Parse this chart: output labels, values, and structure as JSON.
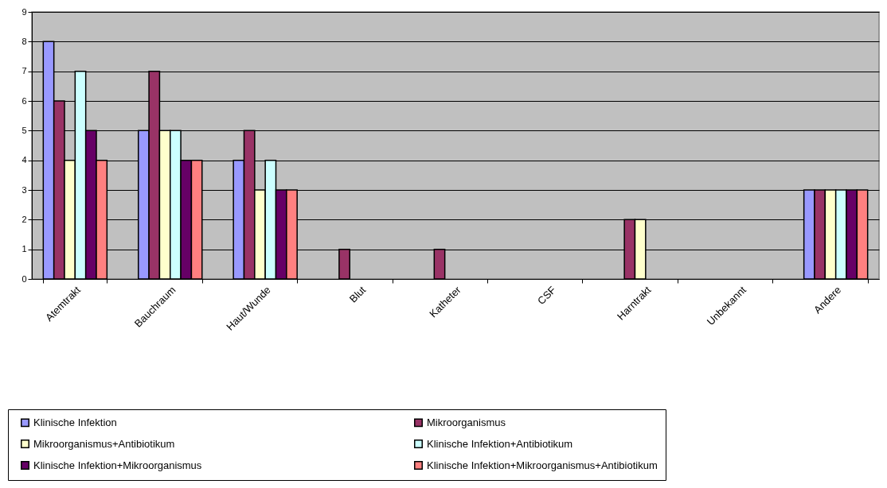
{
  "chart_data": {
    "type": "bar",
    "categories": [
      "Atemtrakt",
      "Bauchraum",
      "Haut/Wunde",
      "Blut",
      "Katheter",
      "CSF",
      "Harntrakt",
      "Unbekannt",
      "Andere"
    ],
    "series": [
      {
        "name": "Klinische Infektion",
        "color": "#9999ff",
        "values": [
          8,
          5,
          4,
          0,
          0,
          0,
          0,
          0,
          3
        ]
      },
      {
        "name": "Mikroorganismus",
        "color": "#993366",
        "values": [
          6,
          7,
          5,
          1,
          1,
          0,
          2,
          0,
          3
        ]
      },
      {
        "name": "Mikroorganismus+Antibiotikum",
        "color": "#ffffcc",
        "values": [
          4,
          5,
          3,
          0,
          0,
          0,
          2,
          0,
          3
        ]
      },
      {
        "name": "Klinische Infektion+Antibiotikum",
        "color": "#ccffff",
        "values": [
          7,
          5,
          4,
          0,
          0,
          0,
          0,
          0,
          3
        ]
      },
      {
        "name": "Klinische Infektion+Mikroorganismus",
        "color": "#660066",
        "values": [
          5,
          4,
          3,
          0,
          0,
          0,
          0,
          0,
          3
        ]
      },
      {
        "name": "Klinische Infektion+Mikroorganismus+Antibiotikum",
        "color": "#ff8080",
        "values": [
          4,
          4,
          3,
          0,
          0,
          0,
          0,
          0,
          3
        ]
      }
    ],
    "ylim": [
      0,
      9
    ],
    "yticks": [
      0,
      1,
      2,
      3,
      4,
      5,
      6,
      7,
      8,
      9
    ],
    "grid": "y",
    "legend": "bottom"
  }
}
